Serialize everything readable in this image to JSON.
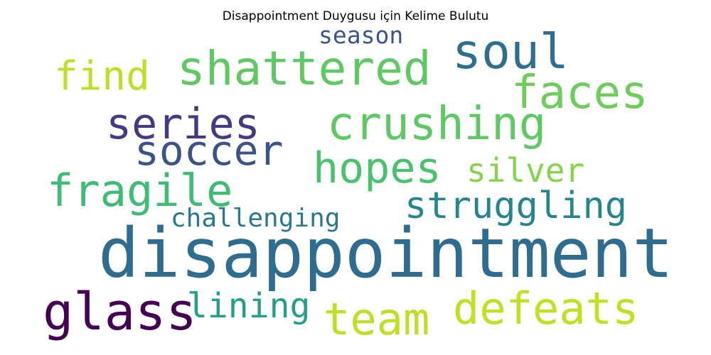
{
  "title": "Disappointment Duygusu için Kelime Bulutu",
  "words": [
    {
      "text": "disappointment",
      "color": "#2e6d8e"
    },
    {
      "text": "shattered",
      "color": "#5ec962"
    },
    {
      "text": "soul",
      "color": "#2e6e8e"
    },
    {
      "text": "faces",
      "color": "#6ccd5a"
    },
    {
      "text": "find",
      "color": "#bddf26"
    },
    {
      "text": "season",
      "color": "#39568c"
    },
    {
      "text": "series",
      "color": "#443983"
    },
    {
      "text": "crushing",
      "color": "#5ec962"
    },
    {
      "text": "soccer",
      "color": "#3b528b"
    },
    {
      "text": "hopes",
      "color": "#4ac16d"
    },
    {
      "text": "silver",
      "color": "#84d44b"
    },
    {
      "text": "fragile",
      "color": "#3fbc73"
    },
    {
      "text": "struggling",
      "color": "#25858e"
    },
    {
      "text": "challenging",
      "color": "#2a788e"
    },
    {
      "text": "glass",
      "color": "#440154"
    },
    {
      "text": "lining",
      "color": "#1fa088"
    },
    {
      "text": "team",
      "color": "#bddf26"
    },
    {
      "text": "defeats",
      "color": "#c2df23"
    }
  ]
}
